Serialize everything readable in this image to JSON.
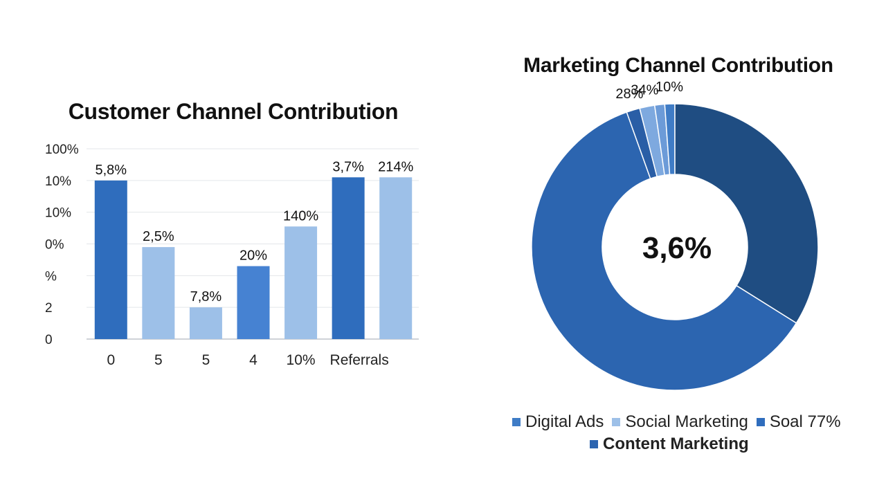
{
  "chart_data": [
    {
      "type": "bar",
      "title": "Customer Channel Contribution",
      "y_tick_labels": [
        "100%",
        "10%",
        "10%",
        "0%",
        "%",
        "2",
        "0"
      ],
      "categories": [
        "0",
        "5",
        "5",
        "4",
        "10%",
        "Referrals",
        ""
      ],
      "values": [
        100,
        58,
        20,
        46,
        71,
        102,
        102
      ],
      "value_labels": [
        "5,8%",
        "2,5%",
        "7,8%",
        "20%",
        "140%",
        "3,7%",
        "214%"
      ],
      "bar_colors": [
        "#2f6dbd",
        "#9dc0e8",
        "#9dc0e8",
        "#4682d2",
        "#9dc0e8",
        "#2f6dbd",
        "#9dc0e8"
      ],
      "ylim": [
        0,
        120
      ],
      "grid": true
    },
    {
      "type": "pie",
      "title": "Marketing Channel Contribution",
      "donut": true,
      "center_label": "3,6%",
      "slices": [
        {
          "label": "",
          "value": 322,
          "color": "#2c65b0"
        },
        {
          "label": "28%",
          "value": 8,
          "color": "#2a5ea6"
        },
        {
          "label": "34%",
          "value": 9,
          "color": "#7ea9df"
        },
        {
          "label": "",
          "value": 6,
          "color": "#6c9bd8"
        },
        {
          "label": "10%",
          "value": 6,
          "color": "#3f7cc6"
        },
        {
          "label": "",
          "value": 180,
          "color": "#1f4d82"
        }
      ],
      "legend": [
        {
          "label": "Digital Ads",
          "color": "#3f7cc6"
        },
        {
          "label": "Social Marketing",
          "color": "#9dc0e8"
        },
        {
          "label": "Soal 77%",
          "color": "#2f6dbd"
        },
        {
          "label": "Content Marketing",
          "color": "#2c65b0"
        }
      ],
      "legend_placement": "bottom"
    }
  ]
}
